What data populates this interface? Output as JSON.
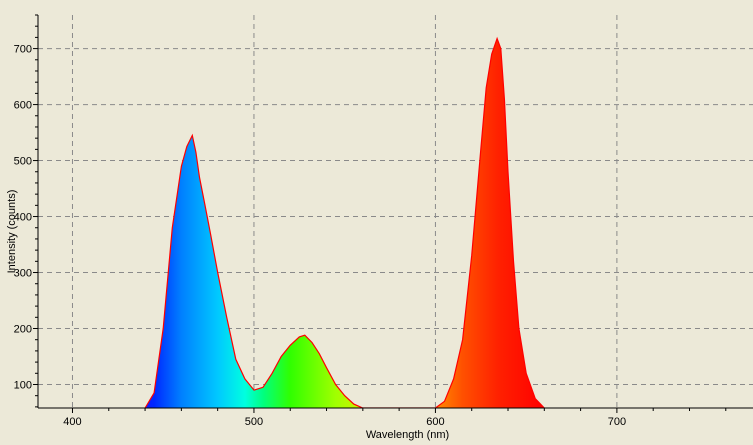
{
  "chart_data": {
    "type": "area",
    "title": "",
    "xlabel": "Wavelength (nm)",
    "ylabel": "Intensity (counts)",
    "xlim": [
      381,
      775
    ],
    "ylim": [
      58,
      760
    ],
    "x_ticks": [
      400,
      500,
      600,
      700
    ],
    "y_ticks": [
      100,
      200,
      300,
      400,
      500,
      600,
      700
    ],
    "grid": true,
    "fill": "wavelength spectrum gradient",
    "outline_color": "#FF0000",
    "background_color": "#ECE9D8",
    "series": [
      {
        "x": [
          440,
          445,
          450,
          455,
          460,
          463,
          466,
          468,
          470,
          473,
          476,
          480,
          485,
          490,
          495,
          500,
          505,
          510,
          515,
          520,
          525,
          528,
          532,
          536,
          540,
          545,
          550,
          555,
          560,
          565,
          570,
          580,
          590,
          600,
          605,
          610,
          615,
          620,
          625,
          628,
          631,
          634,
          636,
          638,
          640,
          643,
          646,
          650,
          655,
          660
        ],
        "y": [
          58,
          85,
          200,
          380,
          490,
          525,
          545,
          515,
          470,
          420,
          370,
          300,
          220,
          145,
          110,
          90,
          95,
          120,
          150,
          170,
          185,
          188,
          175,
          155,
          130,
          100,
          80,
          65,
          58,
          58,
          58,
          58,
          58,
          58,
          70,
          110,
          180,
          330,
          520,
          630,
          690,
          718,
          700,
          610,
          480,
          320,
          200,
          120,
          75,
          58
        ]
      }
    ]
  }
}
